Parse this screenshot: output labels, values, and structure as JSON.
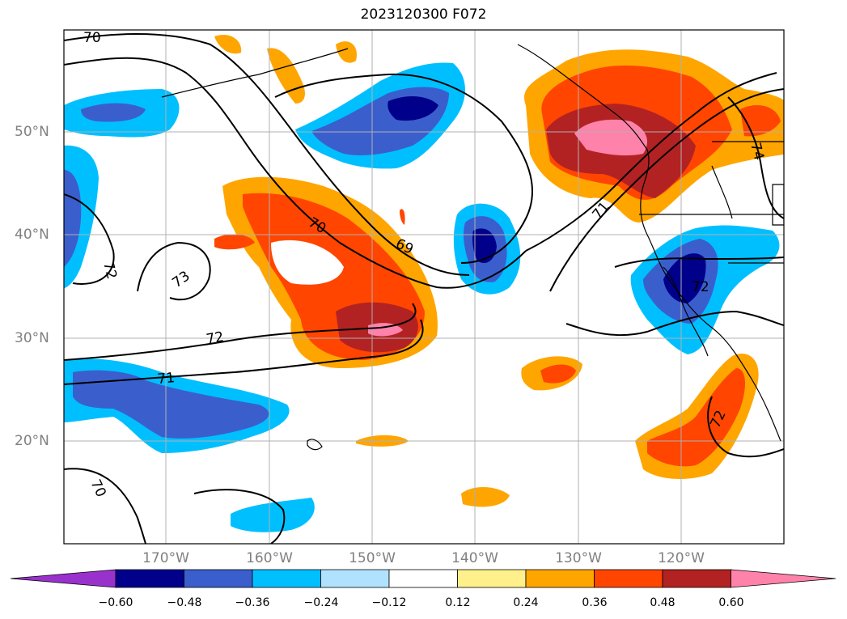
{
  "title": "2023120300 F072",
  "lat_labels": [
    "50°N",
    "40°N",
    "30°N",
    "20°N"
  ],
  "lon_labels": [
    "170°W",
    "160°W",
    "150°W",
    "140°W",
    "130°W",
    "120°W"
  ],
  "contour_labels": [
    "70",
    "72",
    "73",
    "72",
    "71",
    "70",
    "69",
    "71",
    "72",
    "74",
    "72",
    "70"
  ],
  "colorbar": {
    "ticks": [
      "−0.60",
      "−0.48",
      "−0.36",
      "−0.24",
      "−0.12",
      "0.12",
      "0.24",
      "0.36",
      "0.48",
      "0.60"
    ],
    "colors": [
      "#9932cc",
      "#00008b",
      "#3a5fcd",
      "#00bfff",
      "#b0e2ff",
      "#ffffff",
      "#fff08c",
      "#ffa500",
      "#ff4500",
      "#b22222",
      "#ff82ab"
    ]
  }
}
